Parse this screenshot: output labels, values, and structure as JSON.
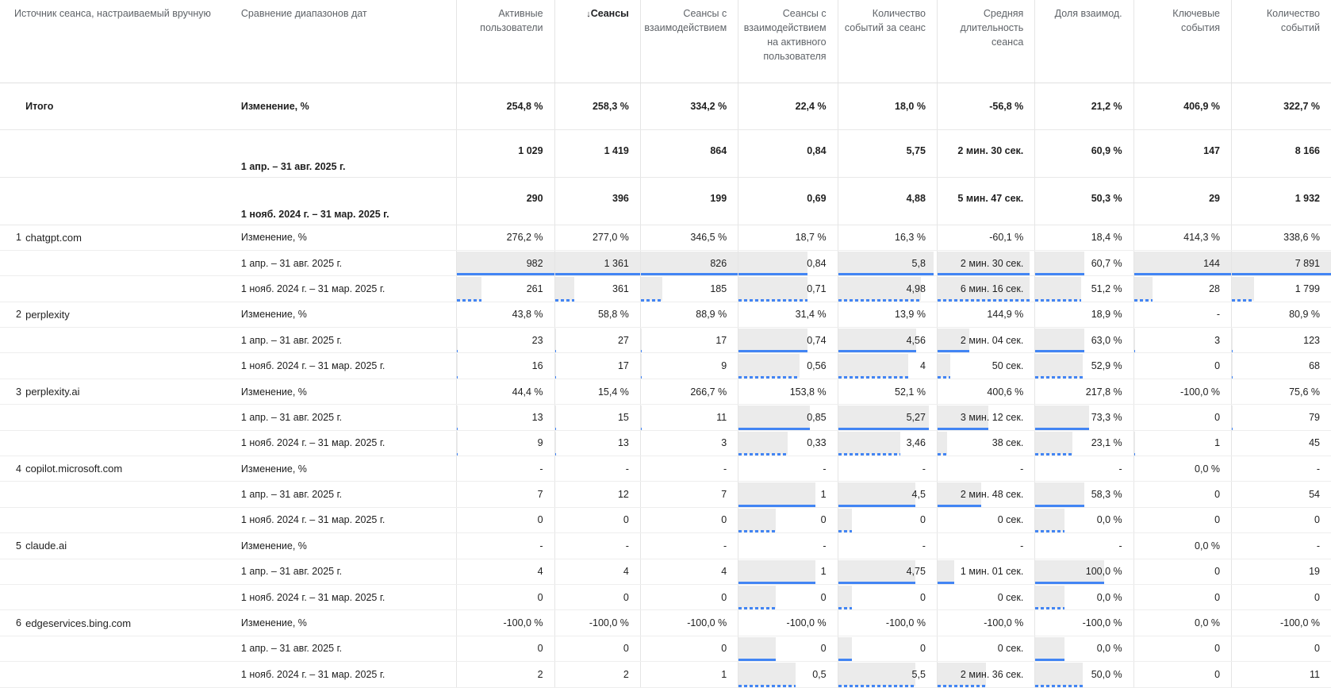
{
  "header": {
    "dim1": "Источник сеанса, настраиваемый вручную",
    "dim2": "Сравнение диапазонов дат",
    "sort_arrow": "↓",
    "metrics": [
      "Активные пользователи",
      "Сеансы",
      "Сеансы с взаимодействием",
      "Сеансы с взаимодействием на активного пользователя",
      "Количество событий за сеанс",
      "Средняя длительность сеанса",
      "Доля взаимод.",
      "Ключевые события",
      "Количество событий"
    ],
    "sorted_metric": "Сеансы"
  },
  "totals": {
    "label": "Итого",
    "change_label": "Изменение, %",
    "change": [
      "254,8 %",
      "258,3 %",
      "334,2 %",
      "22,4 %",
      "18,0 %",
      "-56,8 %",
      "21,2 %",
      "406,9 %",
      "322,7 %"
    ],
    "period1_label": "1 апр. – 31 авг. 2025 г.",
    "period1": [
      "1 029",
      "1 419",
      "864",
      "0,84",
      "5,75",
      "2 мин. 30 сек.",
      "60,9 %",
      "147",
      "8 166"
    ],
    "period2_label": "1 нояб. 2024 г. – 31 мар. 2025 г.",
    "period2": [
      "290",
      "396",
      "199",
      "0,69",
      "4,88",
      "5 мин. 47 сек.",
      "50,3 %",
      "29",
      "1 932"
    ]
  },
  "rows": [
    {
      "index": "1",
      "source": "chatgpt.com",
      "change": [
        "276,2 %",
        "277,0 %",
        "346,5 %",
        "18,7 %",
        "16,3 %",
        "-60,1 %",
        "18,4 %",
        "414,3 %",
        "338,6 %"
      ],
      "p1": [
        "982",
        "1 361",
        "826",
        "0,84",
        "5,8",
        "2 мин. 30 сек.",
        "60,7 %",
        "144",
        "7 891"
      ],
      "p2": [
        "261",
        "361",
        "185",
        "0,71",
        "4,98",
        "6 мин. 16 сек.",
        "51,2 %",
        "28",
        "1 799"
      ],
      "p1_fill": [
        1,
        1,
        1,
        0.7,
        0.97,
        0.95,
        0.5,
        1,
        1
      ],
      "p2_fill": [
        0.25,
        0.23,
        0.22,
        0.7,
        0.84,
        0.95,
        0.47,
        0.19,
        0.22
      ]
    },
    {
      "index": "2",
      "source": "perplexity",
      "change": [
        "43,8 %",
        "58,8 %",
        "88,9 %",
        "31,4 %",
        "13,9 %",
        "144,9 %",
        "18,9 %",
        "-",
        "80,9 %"
      ],
      "p1": [
        "23",
        "27",
        "17",
        "0,74",
        "4,56",
        "2 мин. 04 сек.",
        "63,0 %",
        "3",
        "123"
      ],
      "p2": [
        "16",
        "17",
        "9",
        "0,56",
        "4",
        "50 сек.",
        "52,9 %",
        "0",
        "68"
      ],
      "p1_fill": [
        0.01,
        0.01,
        0.01,
        0.7,
        0.79,
        0.33,
        0.5,
        0.01,
        0.01
      ],
      "p2_fill": [
        0.01,
        0.01,
        0.01,
        0.62,
        0.71,
        0.13,
        0.48,
        0.0,
        0.01
      ]
    },
    {
      "index": "3",
      "source": "perplexity.ai",
      "change": [
        "44,4 %",
        "15,4 %",
        "266,7 %",
        "153,8 %",
        "52,1 %",
        "400,6 %",
        "217,8 %",
        "-100,0 %",
        "75,6 %"
      ],
      "p1": [
        "13",
        "15",
        "11",
        "0,85",
        "5,27",
        "3 мин. 12 сек.",
        "73,3 %",
        "0",
        "79"
      ],
      "p2": [
        "9",
        "13",
        "3",
        "0,33",
        "3,46",
        "38 сек.",
        "23,1 %",
        "1",
        "45"
      ],
      "p1_fill": [
        0.01,
        0.01,
        0.01,
        0.72,
        0.92,
        0.52,
        0.55,
        0.0,
        0.01
      ],
      "p2_fill": [
        0.01,
        0.01,
        0.0,
        0.5,
        0.63,
        0.1,
        0.38,
        0.01,
        0.0
      ]
    },
    {
      "index": "4",
      "source": "copilot.microsoft.com",
      "change": [
        "-",
        "-",
        "-",
        "-",
        "-",
        "-",
        "-",
        "0,0 %",
        "-"
      ],
      "p1": [
        "7",
        "12",
        "7",
        "1",
        "4,5",
        "2 мин. 48 сек.",
        "58,3 %",
        "0",
        "54"
      ],
      "p2": [
        "0",
        "0",
        "0",
        "0",
        "0",
        "0 сек.",
        "0,0 %",
        "0",
        "0"
      ],
      "p1_fill": [
        0,
        0,
        0,
        0.78,
        0.78,
        0.45,
        0.5,
        0,
        0
      ],
      "p2_fill": [
        0,
        0,
        0,
        0.38,
        0.14,
        0.0,
        0.3,
        0,
        0
      ]
    },
    {
      "index": "5",
      "source": "claude.ai",
      "change": [
        "-",
        "-",
        "-",
        "-",
        "-",
        "-",
        "-",
        "0,0 %",
        "-"
      ],
      "p1": [
        "4",
        "4",
        "4",
        "1",
        "4,75",
        "1 мин. 01 сек.",
        "100,0 %",
        "0",
        "19"
      ],
      "p2": [
        "0",
        "0",
        "0",
        "0",
        "0",
        "0 сек.",
        "0,0 %",
        "0",
        "0"
      ],
      "p1_fill": [
        0,
        0,
        0,
        0.78,
        0.78,
        0.17,
        0.7,
        0,
        0
      ],
      "p2_fill": [
        0,
        0,
        0,
        0.38,
        0.14,
        0.0,
        0.3,
        0,
        0
      ]
    },
    {
      "index": "6",
      "source": "edgeservices.bing.com",
      "change": [
        "-100,0 %",
        "-100,0 %",
        "-100,0 %",
        "-100,0 %",
        "-100,0 %",
        "-100,0 %",
        "-100,0 %",
        "0,0 %",
        "-100,0 %"
      ],
      "p1": [
        "0",
        "0",
        "0",
        "0",
        "0",
        "0 сек.",
        "0,0 %",
        "0",
        "0"
      ],
      "p2": [
        "2",
        "2",
        "1",
        "0,5",
        "5,5",
        "2 мин. 36 сек.",
        "50,0 %",
        "0",
        "11"
      ],
      "p1_fill": [
        0,
        0,
        0,
        0.38,
        0.14,
        0.0,
        0.3,
        0,
        0
      ],
      "p2_fill": [
        0,
        0,
        0,
        0.58,
        0.78,
        0.5,
        0.48,
        0,
        0.0
      ]
    }
  ],
  "change_label": "Изменение, %",
  "period1_label": "1 апр. – 31 авг. 2025 г.",
  "period2_label": "1 нояб. 2024 г. – 31 мар. 2025 г."
}
